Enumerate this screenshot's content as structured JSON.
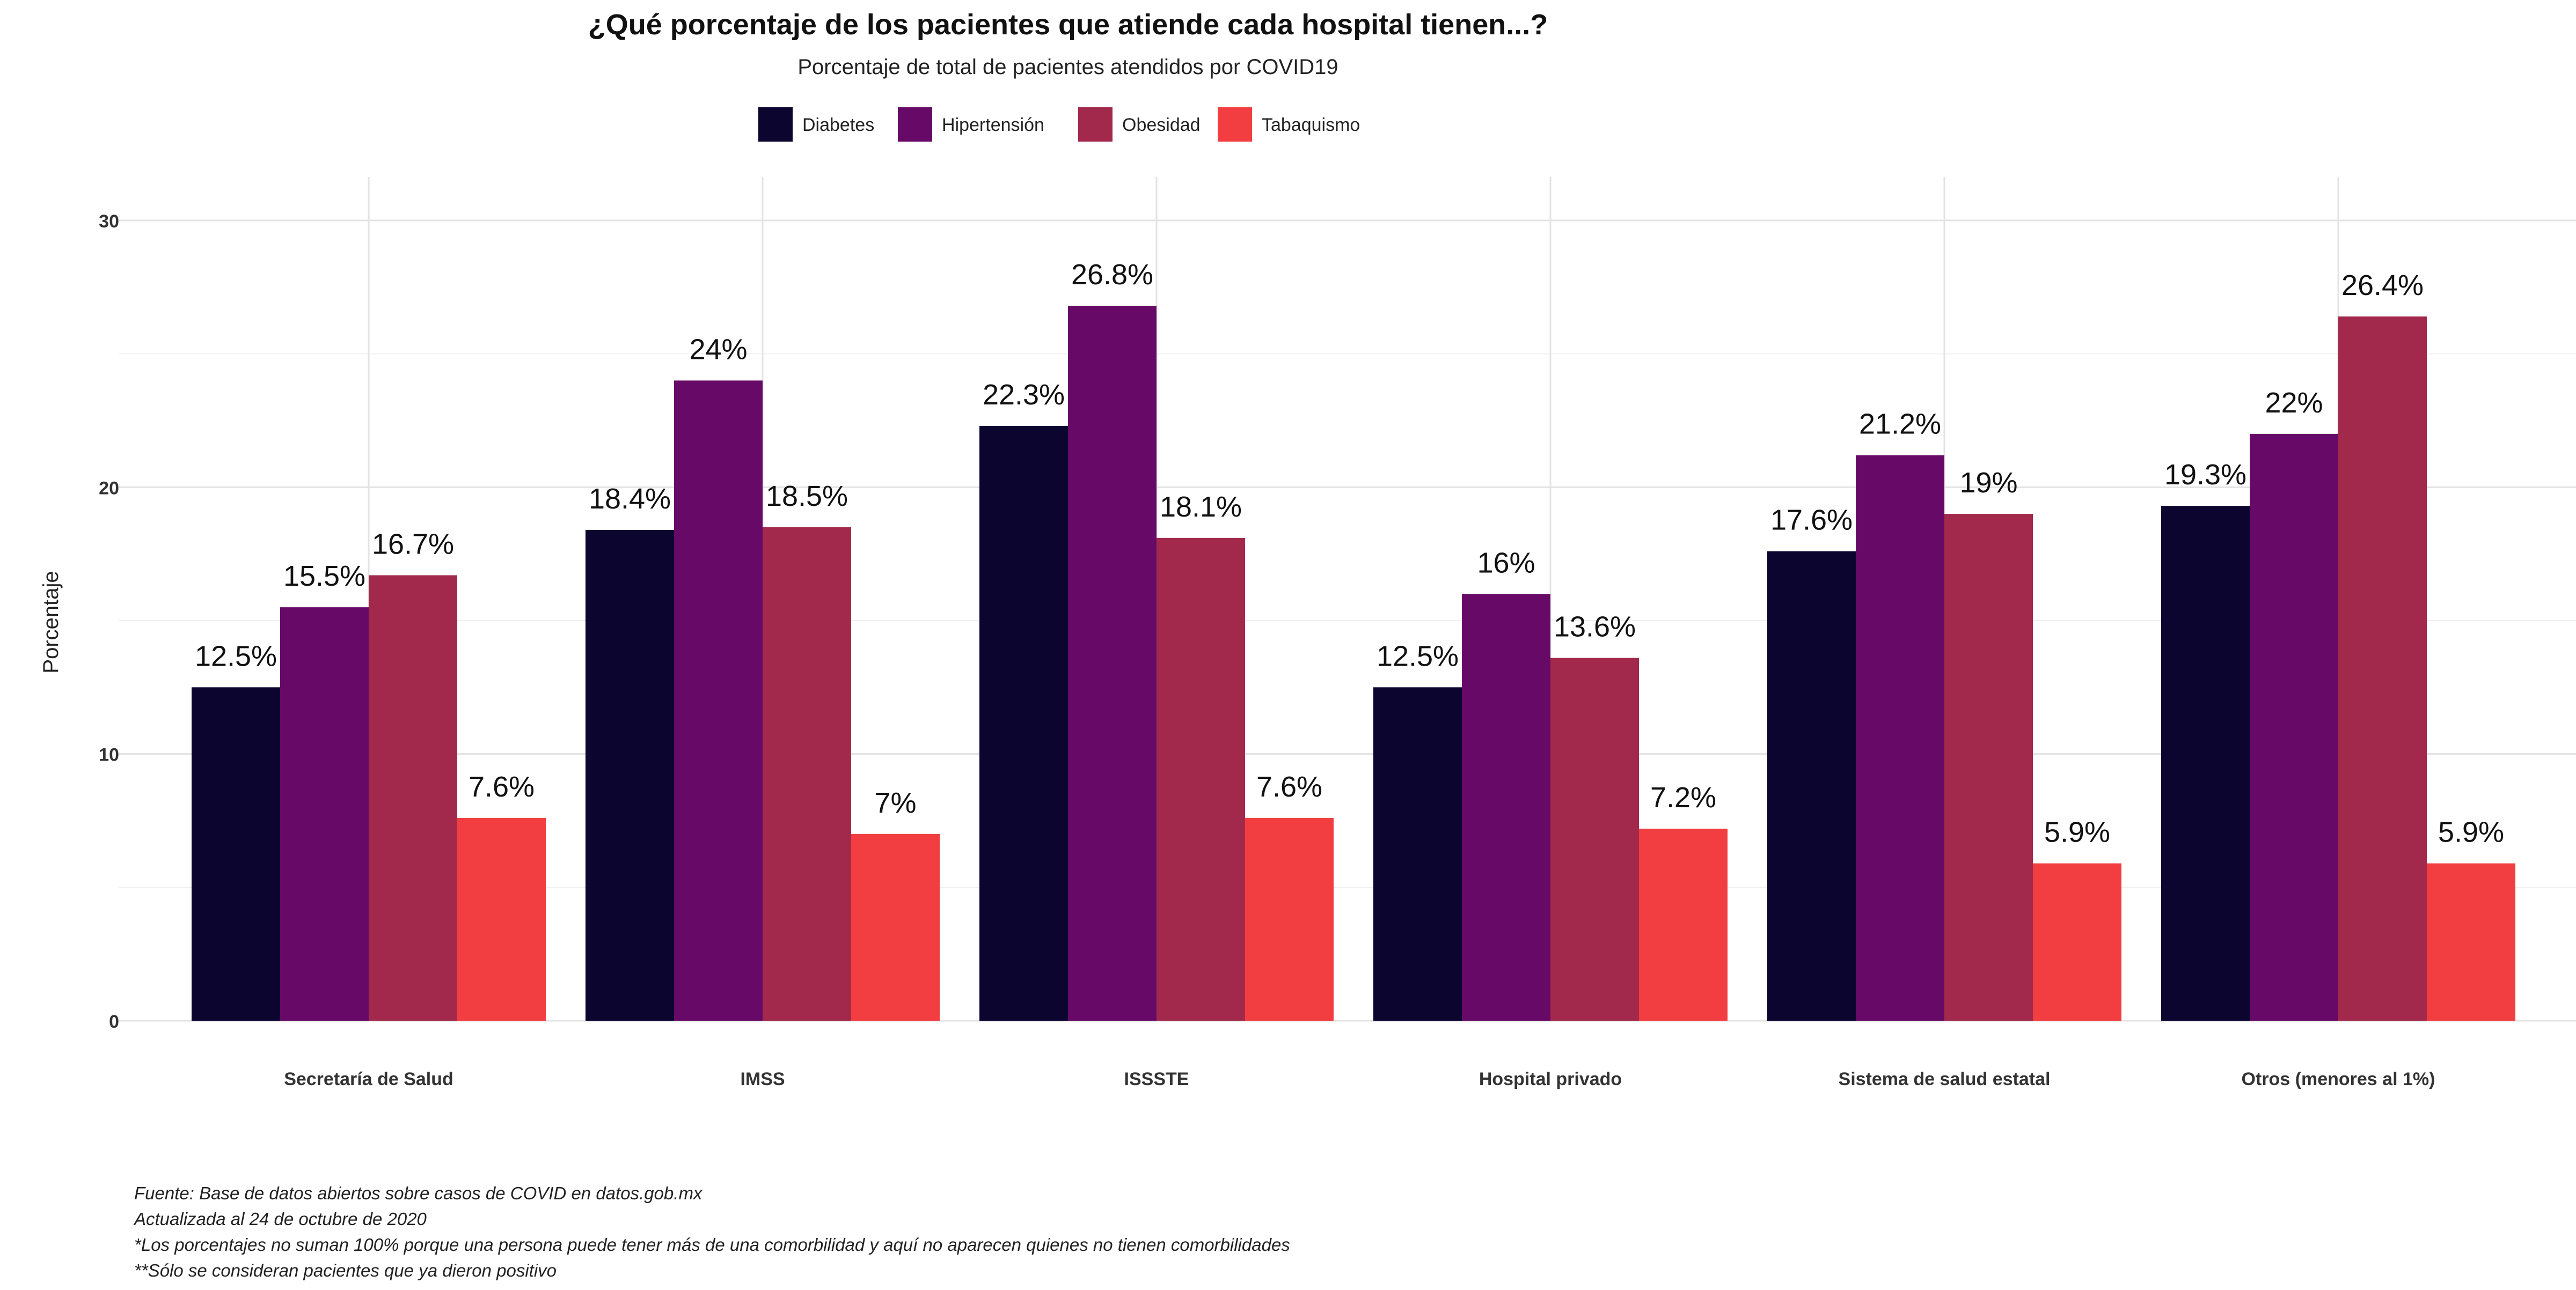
{
  "chart_data": {
    "type": "bar",
    "title": "¿Qué porcentaje de los pacientes que atiende cada hospital tienen...?",
    "subtitle": "Porcentaje de total de pacientes atendidos por COVID19",
    "xlabel": "",
    "ylabel": "Porcentaje",
    "ylim": [
      0,
      30
    ],
    "yticks": [
      0,
      10,
      20,
      30
    ],
    "grid": true,
    "legend_position": "top-center",
    "categories": [
      "Secretaría de Salud",
      "IMSS",
      "ISSSTE",
      "Hospital privado",
      "Sistema de salud estatal",
      "Otros (menores al 1%)"
    ],
    "series": [
      {
        "name": "Diabetes",
        "color": "#0b0530",
        "values": [
          12.5,
          18.4,
          22.3,
          12.5,
          17.6,
          19.3
        ],
        "labels": [
          "12.5%",
          "18.4%",
          "22.3%",
          "12.5%",
          "17.6%",
          "19.3%"
        ]
      },
      {
        "name": "Hipertensión",
        "color": "#670a67",
        "values": [
          15.5,
          24,
          26.8,
          16,
          21.2,
          22
        ],
        "labels": [
          "15.5%",
          "24%",
          "26.8%",
          "16%",
          "21.2%",
          "22%"
        ]
      },
      {
        "name": "Obesidad",
        "color": "#a3294c",
        "values": [
          16.7,
          18.5,
          18.1,
          13.6,
          19,
          26.4
        ],
        "labels": [
          "16.7%",
          "18.5%",
          "18.1%",
          "13.6%",
          "19%",
          "26.4%"
        ]
      },
      {
        "name": "Tabaquismo",
        "color": "#f23e40",
        "values": [
          7.6,
          7,
          7.6,
          7.2,
          5.9,
          5.9
        ],
        "labels": [
          "7.6%",
          "7%",
          "7.6%",
          "7.2%",
          "5.9%",
          "5.9%"
        ]
      }
    ]
  },
  "caption": [
    "Fuente: Base de datos abiertos sobre casos de COVID en datos.gob.mx",
    "Actualizada al 24 de octubre de 2020",
    "*Los porcentajes no suman 100% porque una persona puede tener más de una comorbilidad y aquí no aparecen quienes no tienen comorbilidades",
    "**Sólo se consideran pacientes que ya dieron positivo"
  ]
}
